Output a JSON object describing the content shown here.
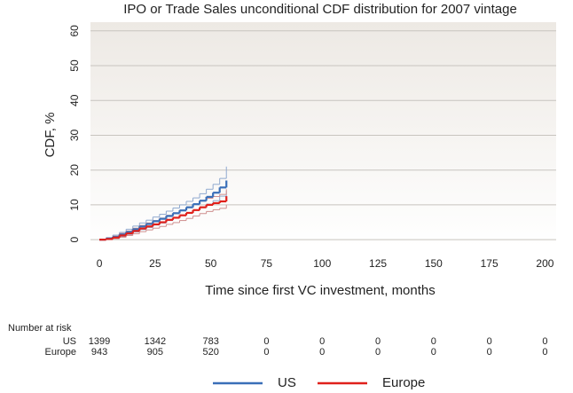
{
  "chart_data": {
    "type": "step",
    "title": "IPO or Trade Sales unconditional CDF distribution for 2007 vintage",
    "x_label": "Time since first VC investment, months",
    "y_label": "CDF, %",
    "xlim": [
      -4,
      205
    ],
    "ylim": [
      -2,
      62.5
    ],
    "xticks": [
      0,
      25,
      50,
      75,
      100,
      125,
      150,
      175,
      200
    ],
    "yticks": [
      0,
      10,
      20,
      30,
      40,
      50,
      60
    ],
    "grid": true,
    "x": [
      0,
      3,
      6,
      9,
      12,
      15,
      18,
      21,
      24,
      27,
      30,
      33,
      36,
      39,
      42,
      45,
      48,
      51,
      54,
      57
    ],
    "series": [
      {
        "name": "US",
        "color": "#3a6fb8",
        "band_color": "#8fa9cf",
        "values": [
          0,
          0.3,
          0.8,
          1.5,
          2.2,
          3,
          3.8,
          4.5,
          5.3,
          6,
          6.8,
          7.6,
          8.4,
          9.3,
          10.2,
          11.2,
          12.3,
          13.5,
          15,
          17
        ],
        "lower": [
          0,
          0.1,
          0.4,
          0.9,
          1.5,
          2.2,
          2.9,
          3.5,
          4.2,
          4.8,
          5.5,
          6.2,
          6.9,
          7.7,
          8.5,
          9.3,
          10.2,
          11.2,
          12.5,
          14
        ],
        "upper": [
          0,
          0.6,
          1.3,
          2.1,
          3,
          3.9,
          4.8,
          5.6,
          6.5,
          7.3,
          8.2,
          9.1,
          10,
          11,
          12,
          13.2,
          14.5,
          15.9,
          17.6,
          21
        ]
      },
      {
        "name": "Europe",
        "color": "#e0201b",
        "band_color": "#cf8f8f",
        "values": [
          0,
          0.2,
          0.6,
          1.2,
          1.8,
          2.5,
          3.2,
          3.8,
          4.4,
          5,
          5.7,
          6.3,
          7,
          7.7,
          8.5,
          9.3,
          10,
          10.5,
          11,
          12.5
        ],
        "lower": [
          0,
          0.05,
          0.3,
          0.7,
          1.2,
          1.7,
          2.3,
          2.8,
          3.3,
          3.8,
          4.4,
          4.9,
          5.5,
          6.1,
          6.8,
          7.5,
          8.1,
          8.6,
          9,
          10
        ],
        "upper": [
          0,
          0.4,
          1,
          1.8,
          2.5,
          3.3,
          4.1,
          4.8,
          5.5,
          6.2,
          7,
          7.7,
          8.5,
          9.3,
          10.2,
          11.1,
          11.9,
          12.4,
          13,
          14.5
        ]
      }
    ],
    "risk_table": {
      "title": "Number at risk",
      "rows": [
        {
          "name": "US",
          "values": [
            1399,
            1342,
            783,
            0,
            0,
            0,
            0,
            0,
            0
          ]
        },
        {
          "name": "Europe",
          "values": [
            943,
            905,
            520,
            0,
            0,
            0,
            0,
            0,
            0
          ]
        }
      ]
    }
  }
}
